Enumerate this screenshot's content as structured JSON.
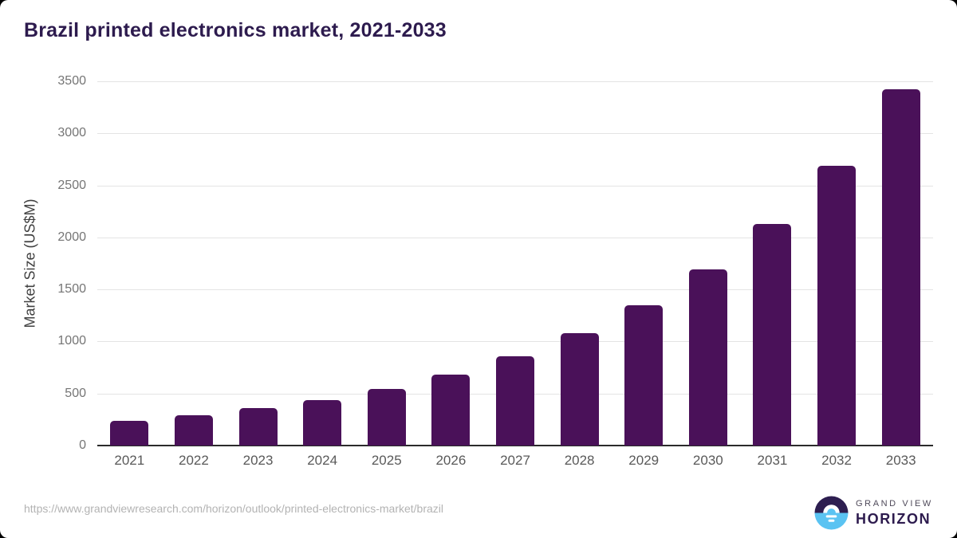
{
  "header": {
    "title": "Brazil printed electronics market, 2021-2033"
  },
  "chart_data": {
    "type": "bar",
    "title": "Brazil printed electronics market, 2021-2033",
    "categories": [
      "2021",
      "2022",
      "2023",
      "2024",
      "2025",
      "2026",
      "2027",
      "2028",
      "2029",
      "2030",
      "2031",
      "2032",
      "2033"
    ],
    "values": [
      235,
      290,
      360,
      440,
      545,
      685,
      855,
      1080,
      1345,
      1690,
      2130,
      2690,
      3420
    ],
    "xlabel": "",
    "ylabel": "Market Size (US$M)",
    "ylim": [
      0,
      3500
    ],
    "yticks": [
      0,
      500,
      1000,
      1500,
      2000,
      2500,
      3000,
      3500
    ],
    "grid": true,
    "legend_position": "none",
    "bar_color": "#4a1159"
  },
  "footer": {
    "source_url": "https://www.grandviewresearch.com/horizon/outlook/printed-electronics-market/brazil",
    "logo": {
      "line1": "GRAND VIEW",
      "line2": "HORIZON"
    }
  },
  "colors": {
    "title": "#2d1b4e",
    "bar": "#4a1159",
    "gridline": "#e4e4e4",
    "axis_line": "#2b2b2b",
    "y_tick": "#757575",
    "x_tick": "#595959",
    "url_text": "#b3b3b3",
    "logo_purple": "#2d1e50",
    "logo_blue": "#5ac3f2"
  }
}
